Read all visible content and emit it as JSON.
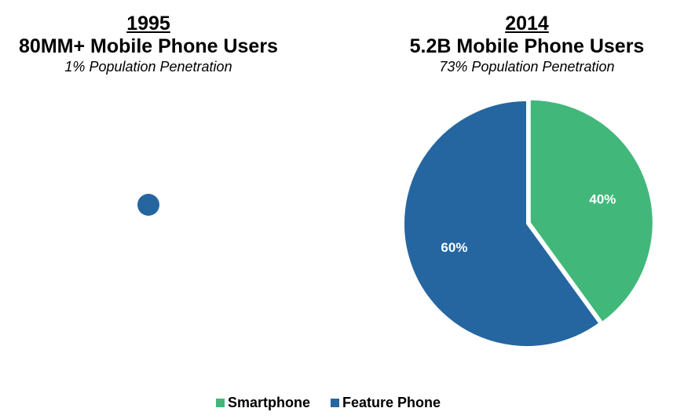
{
  "chart_data": [
    {
      "type": "pie",
      "year": "1995",
      "title": "80MM+ Mobile Phone Users",
      "subtitle": "1% Population Penetration",
      "slices": [
        {
          "label": "Feature Phone",
          "value": 100
        }
      ]
    },
    {
      "type": "pie",
      "year": "2014",
      "title": "5.2B Mobile Phone Users",
      "subtitle": "73% Population Penetration",
      "slices": [
        {
          "label": "Smartphone",
          "value": 40,
          "data_label": "40%"
        },
        {
          "label": "Feature Phone",
          "value": 60,
          "data_label": "60%"
        }
      ]
    }
  ],
  "legend": [
    {
      "label": "Smartphone",
      "color": "#41b87a"
    },
    {
      "label": "Feature Phone",
      "color": "#2566a0"
    }
  ],
  "colors": {
    "Smartphone": "#41b87a",
    "Feature Phone": "#2566a0"
  }
}
